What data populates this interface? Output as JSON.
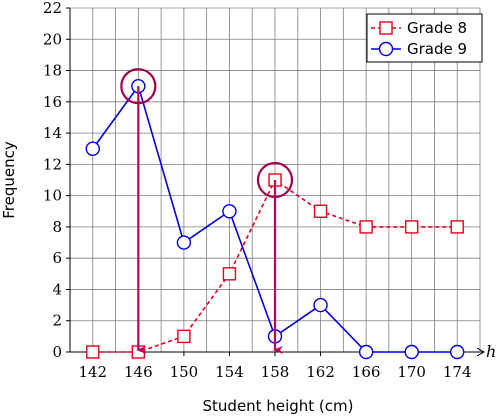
{
  "chart_data": {
    "type": "line",
    "xlabel": "Student height (cm)",
    "ylabel": "Frequency",
    "x_axis_symbol": "h",
    "x": [
      142,
      146,
      150,
      154,
      158,
      162,
      166,
      170,
      174
    ],
    "xlim": [
      140,
      176
    ],
    "ylim": [
      0,
      22
    ],
    "yticks": [
      0,
      2,
      4,
      6,
      8,
      10,
      12,
      14,
      16,
      18,
      20,
      22
    ],
    "grid": true,
    "legend_position": "top-right",
    "series": [
      {
        "name": "Grade 8",
        "values": [
          0,
          0,
          1,
          5,
          11,
          9,
          8,
          8,
          8
        ],
        "color": "#e8001c",
        "marker": "square",
        "line_style": "dashed"
      },
      {
        "name": "Grade 9",
        "values": [
          13,
          17,
          7,
          9,
          1,
          3,
          0,
          0,
          0
        ],
        "color": "#0000e0",
        "marker": "circle",
        "line_style": "solid"
      }
    ],
    "annotations": [
      {
        "type": "highlight-circle",
        "series": "Grade 9",
        "x": 146,
        "y": 17,
        "color": "#a0004a"
      },
      {
        "type": "highlight-circle",
        "series": "Grade 8",
        "x": 158,
        "y": 11,
        "color": "#a0004a"
      },
      {
        "type": "arrow-down",
        "x": 146,
        "from_y": 17,
        "to_y": 0,
        "color": "#c0005a"
      },
      {
        "type": "arrow-down",
        "x": 158,
        "from_y": 11,
        "to_y": 0,
        "color": "#c0005a"
      }
    ]
  }
}
